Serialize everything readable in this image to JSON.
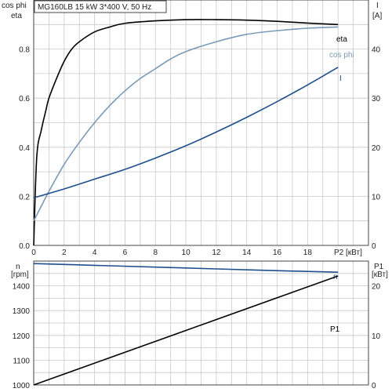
{
  "chart_data": [
    {
      "type": "line",
      "title": "MG160LB   15 kW   3*400 V, 50 Hz",
      "xlabel": "P2 [кВт]",
      "ylabel_left": [
        "cos phi",
        "eta"
      ],
      "ylabel_right": [
        "I",
        "[A]"
      ],
      "xlim": [
        0,
        22
      ],
      "ylim_left": [
        0,
        1.0
      ],
      "ylim_right": [
        0,
        50
      ],
      "xticks": [
        0,
        2,
        4,
        6,
        8,
        10,
        12,
        14,
        16,
        18
      ],
      "yticks_left": [
        0.0,
        0.2,
        0.4,
        0.6,
        0.8
      ],
      "yticks_right": [
        0,
        10,
        20,
        30,
        40
      ],
      "grid": true,
      "series": [
        {
          "name": "eta",
          "axis": "left",
          "color": "#000000",
          "x": [
            0,
            0.2,
            0.5,
            0.8,
            1.0,
            1.5,
            2,
            2.5,
            3,
            4,
            5,
            6,
            8,
            10,
            12,
            14,
            16,
            18,
            20
          ],
          "y": [
            0,
            0.36,
            0.47,
            0.55,
            0.6,
            0.68,
            0.75,
            0.8,
            0.83,
            0.87,
            0.89,
            0.905,
            0.915,
            0.92,
            0.92,
            0.918,
            0.913,
            0.906,
            0.9
          ]
        },
        {
          "name": "cos phi",
          "axis": "left",
          "color": "#7a9ab8",
          "x": [
            0,
            0.5,
            1,
            2,
            3,
            4,
            5,
            6,
            7,
            8,
            9,
            10,
            12,
            14,
            16,
            18,
            20
          ],
          "y": [
            0.1,
            0.16,
            0.22,
            0.33,
            0.42,
            0.5,
            0.57,
            0.63,
            0.68,
            0.72,
            0.76,
            0.79,
            0.83,
            0.86,
            0.875,
            0.885,
            0.89
          ]
        },
        {
          "name": "I",
          "axis": "right",
          "color": "#1f4e8c",
          "x": [
            0,
            2,
            4,
            6,
            8,
            10,
            12,
            14,
            16,
            18,
            20
          ],
          "y": [
            9.7,
            11.5,
            13.5,
            15.5,
            17.8,
            20.3,
            23.1,
            26.1,
            29.3,
            32.7,
            36.3
          ]
        }
      ]
    },
    {
      "type": "line",
      "title": "",
      "xlabel": "",
      "ylabel_left": [
        "n",
        "[rpm]"
      ],
      "ylabel_right": [
        "P1",
        "[кВт]"
      ],
      "xlim": [
        0,
        22
      ],
      "ylim_left": [
        1000,
        1500
      ],
      "ylim_right": [
        0,
        25
      ],
      "yticks_left": [
        1000,
        1100,
        1200,
        1300,
        1400
      ],
      "yticks_right": [
        0,
        10,
        20
      ],
      "grid": true,
      "series": [
        {
          "name": "n",
          "axis": "left",
          "color": "#1f4e8c",
          "x": [
            0,
            5,
            10,
            15,
            20
          ],
          "y": [
            1490,
            1481,
            1472,
            1463,
            1455
          ]
        },
        {
          "name": "P1",
          "axis": "right",
          "color": "#000000",
          "x": [
            0,
            5,
            10,
            15,
            20
          ],
          "y": [
            0,
            5.5,
            11,
            16.5,
            22
          ]
        }
      ]
    }
  ]
}
